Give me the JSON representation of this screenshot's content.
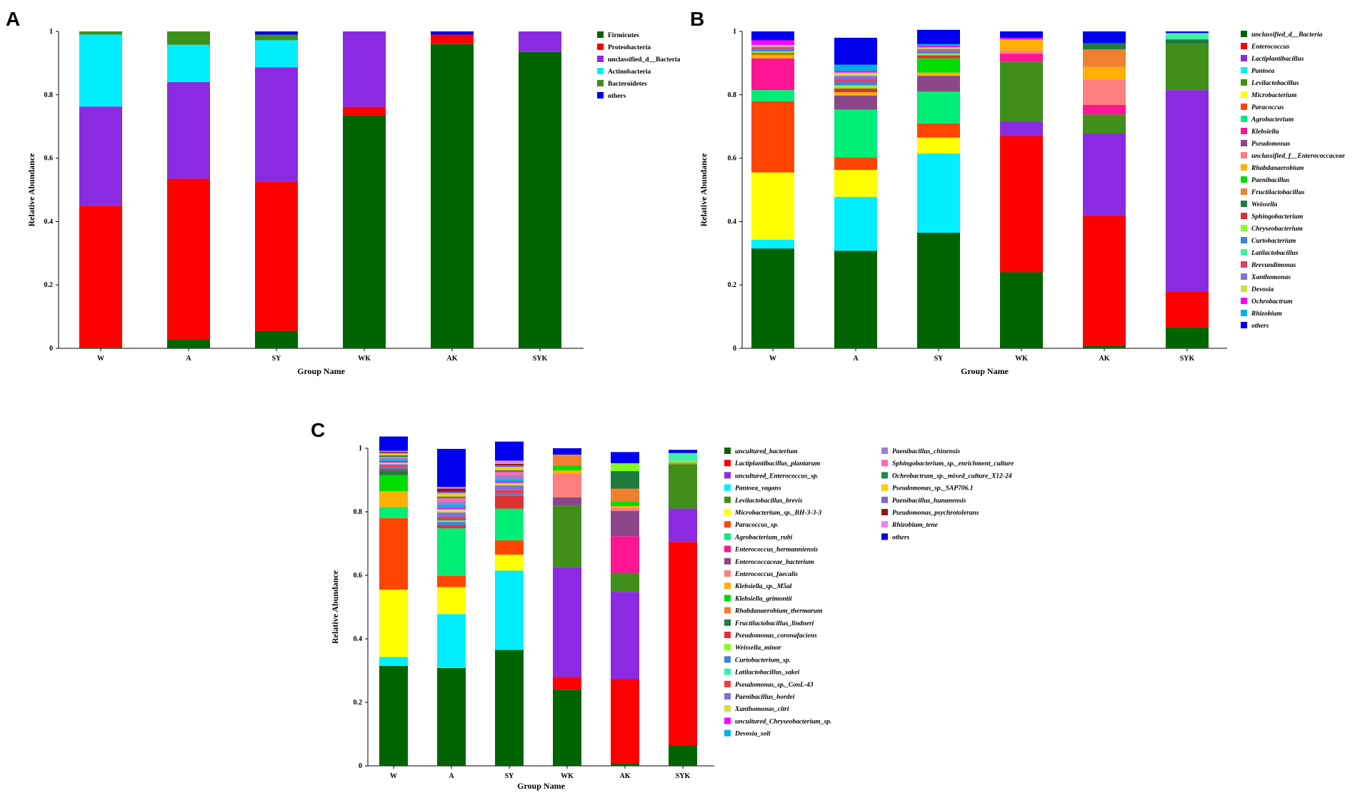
{
  "panels": [
    "A",
    "B",
    "C"
  ],
  "chart_data": [
    {
      "panel": "A",
      "type": "stacked-bar",
      "title": "",
      "xlabel": "Group Name",
      "ylabel": "Relative Abundance",
      "ylim": [
        0,
        1
      ],
      "yticks": [
        "0",
        "0.2",
        "0.4",
        "0.6",
        "0.8",
        "1"
      ],
      "categories": [
        "W",
        "A",
        "SY",
        "WK",
        "AK",
        "SYK"
      ],
      "legend_italic": false,
      "series": [
        {
          "name": "Firmicutes",
          "color": "#006400",
          "values": [
            0.003,
            0.028,
            0.055,
            0.735,
            0.96,
            0.935
          ]
        },
        {
          "name": "Proteobacteria",
          "color": "#ff0000",
          "values": [
            0.447,
            0.507,
            0.47,
            0.027,
            0.03,
            0.0
          ]
        },
        {
          "name": "unclassified_d__Bacteria",
          "color": "#8a2be2",
          "values": [
            0.313,
            0.305,
            0.362,
            0.238,
            0.0,
            0.065
          ]
        },
        {
          "name": "Actinobacteria",
          "color": "#00eeff",
          "values": [
            0.227,
            0.118,
            0.085,
            0.0,
            0.0,
            0.0
          ]
        },
        {
          "name": "Bacteroidetes",
          "color": "#3f8f1a",
          "values": [
            0.01,
            0.042,
            0.018,
            0.0,
            0.0,
            0.0
          ]
        },
        {
          "name": "others",
          "color": "#0000ee",
          "values": [
            0.0,
            0.0,
            0.01,
            0.0,
            0.01,
            0.0
          ]
        }
      ]
    },
    {
      "panel": "B",
      "type": "stacked-bar",
      "title": "",
      "xlabel": "Group Name",
      "ylabel": "Relative Abundance",
      "ylim": [
        0,
        1
      ],
      "yticks": [
        "0",
        "0.2",
        "0.4",
        "0.6",
        "0.8",
        "1"
      ],
      "categories": [
        "W",
        "A",
        "SY",
        "WK",
        "AK",
        "SYK"
      ],
      "legend_italic": true,
      "series": [
        {
          "name": "unclassified_d__Bacteria",
          "color": "#006400",
          "values": [
            0.315,
            0.308,
            0.365,
            0.24,
            0.008,
            0.065
          ]
        },
        {
          "name": "Enterococcus",
          "color": "#ff0000",
          "values": [
            0.0,
            0.0,
            0.0,
            0.43,
            0.41,
            0.115
          ]
        },
        {
          "name": "Lactiplantibacillus",
          "color": "#8a2be2",
          "values": [
            0.0,
            0.0,
            0.0,
            0.045,
            0.26,
            0.635
          ]
        },
        {
          "name": "Pantoea",
          "color": "#00eeff",
          "values": [
            0.028,
            0.17,
            0.25,
            0.0,
            0.0,
            0.0
          ]
        },
        {
          "name": "Levilactobacillus",
          "color": "#3f8f1a",
          "values": [
            0.0,
            0.0,
            0.0,
            0.19,
            0.06,
            0.145
          ]
        },
        {
          "name": "Microbacterium",
          "color": "#ffff00",
          "values": [
            0.212,
            0.085,
            0.05,
            0.0,
            0.0,
            0.0
          ]
        },
        {
          "name": "Paracoccus",
          "color": "#ff4500",
          "values": [
            0.225,
            0.04,
            0.045,
            0.0,
            0.0,
            0.0
          ]
        },
        {
          "name": "Agrobacterium",
          "color": "#00ee76",
          "values": [
            0.035,
            0.15,
            0.1,
            0.0,
            0.0,
            0.0
          ]
        },
        {
          "name": "Klebsiella",
          "color": "#ff1493",
          "values": [
            0.1,
            0.0,
            0.0,
            0.025,
            0.03,
            0.0
          ]
        },
        {
          "name": "Pseudomonas",
          "color": "#8b4789",
          "values": [
            0.0,
            0.045,
            0.05,
            0.0,
            0.0,
            0.0
          ]
        },
        {
          "name": "unclassified_f__Enterococcaceae",
          "color": "#ff7f7f",
          "values": [
            0.0,
            0.0,
            0.0,
            0.01,
            0.08,
            0.0
          ]
        },
        {
          "name": "Rhabdanaerobium",
          "color": "#ffb000",
          "values": [
            0.012,
            0.01,
            0.01,
            0.035,
            0.04,
            0.0
          ]
        },
        {
          "name": "Paenibacillus",
          "color": "#00dd00",
          "values": [
            0.0,
            0.0,
            0.045,
            0.0,
            0.0,
            0.0
          ]
        },
        {
          "name": "Fructilactobacillus",
          "color": "#f08030",
          "values": [
            0.0,
            0.0,
            0.0,
            0.0,
            0.055,
            0.0
          ]
        },
        {
          "name": "Weissella",
          "color": "#1e7b3e",
          "values": [
            0.0,
            0.0,
            0.0,
            0.0,
            0.02,
            0.015
          ]
        },
        {
          "name": "Sphingobacterium",
          "color": "#e03030",
          "values": [
            0.005,
            0.012,
            0.01,
            0.0,
            0.0,
            0.0
          ]
        },
        {
          "name": "Chryseobacterium",
          "color": "#80ff20",
          "values": [
            0.005,
            0.01,
            0.005,
            0.0,
            0.0,
            0.0
          ]
        },
        {
          "name": "Curtobacterium",
          "color": "#4080e0",
          "values": [
            0.005,
            0.01,
            0.005,
            0.0,
            0.0,
            0.0
          ]
        },
        {
          "name": "Latilactobacillus",
          "color": "#40f0a0",
          "values": [
            0.0,
            0.0,
            0.0,
            0.0,
            0.0,
            0.02
          ]
        },
        {
          "name": "Brevundimonas",
          "color": "#e04060",
          "values": [
            0.005,
            0.01,
            0.005,
            0.0,
            0.0,
            0.0
          ]
        },
        {
          "name": "Xanthomonas",
          "color": "#8070e0",
          "values": [
            0.005,
            0.01,
            0.005,
            0.0,
            0.0,
            0.0
          ]
        },
        {
          "name": "Devosia",
          "color": "#d0e040",
          "values": [
            0.005,
            0.01,
            0.005,
            0.0,
            0.0,
            0.0
          ]
        },
        {
          "name": "Ochrobactrum",
          "color": "#ff00ff",
          "values": [
            0.015,
            0.005,
            0.005,
            0.005,
            0.0,
            0.0
          ]
        },
        {
          "name": "Rhizobium",
          "color": "#00b0e0",
          "values": [
            0.0,
            0.02,
            0.005,
            0.0,
            0.0,
            0.0
          ]
        },
        {
          "name": "others",
          "color": "#0000ee",
          "values": [
            0.028,
            0.085,
            0.045,
            0.02,
            0.037,
            0.005
          ]
        }
      ]
    },
    {
      "panel": "C",
      "type": "stacked-bar",
      "title": "",
      "xlabel": "Group Name",
      "ylabel": "Relative Abundance",
      "ylim": [
        0,
        1
      ],
      "yticks": [
        "0",
        "0.2",
        "0.4",
        "0.6",
        "0.8",
        "1"
      ],
      "categories": [
        "W",
        "A",
        "SY",
        "WK",
        "AK",
        "SYK"
      ],
      "legend_italic": true,
      "series": [
        {
          "name": "uncultured_bacterium",
          "color": "#006400",
          "values": [
            0.315,
            0.308,
            0.365,
            0.24,
            0.008,
            0.065
          ]
        },
        {
          "name": "Lactiplantibacillus_plantarum",
          "color": "#ff0000",
          "values": [
            0.0,
            0.0,
            0.0,
            0.04,
            0.265,
            0.64
          ]
        },
        {
          "name": "uncultured_Enterococcus_sp.",
          "color": "#8a2be2",
          "values": [
            0.0,
            0.0,
            0.0,
            0.345,
            0.275,
            0.105
          ]
        },
        {
          "name": "Pantoea_vagans",
          "color": "#00eeff",
          "values": [
            0.028,
            0.17,
            0.25,
            0.0,
            0.0,
            0.0
          ]
        },
        {
          "name": "Levilactobacillus_brevis",
          "color": "#3f8f1a",
          "values": [
            0.0,
            0.0,
            0.0,
            0.195,
            0.06,
            0.14
          ]
        },
        {
          "name": "Microbacterium_sp._BH-3-3-3",
          "color": "#ffff00",
          "values": [
            0.212,
            0.085,
            0.05,
            0.0,
            0.0,
            0.0
          ]
        },
        {
          "name": "Paracoccus_sp.",
          "color": "#ff4500",
          "values": [
            0.225,
            0.035,
            0.045,
            0.0,
            0.0,
            0.0
          ]
        },
        {
          "name": "Agrobacterium_rubi",
          "color": "#00ee76",
          "values": [
            0.035,
            0.15,
            0.1,
            0.0,
            0.0,
            0.0
          ]
        },
        {
          "name": "Enterococcus_hermanniensis",
          "color": "#ff1493",
          "values": [
            0.0,
            0.0,
            0.0,
            0.0,
            0.115,
            0.0
          ]
        },
        {
          "name": "Enterococcaceae_bacterium",
          "color": "#8b4789",
          "values": [
            0.0,
            0.0,
            0.0,
            0.025,
            0.08,
            0.0
          ]
        },
        {
          "name": "Enterococcus_faecalis",
          "color": "#ff7f7f",
          "values": [
            0.0,
            0.0,
            0.0,
            0.075,
            0.01,
            0.0
          ]
        },
        {
          "name": "Klebsiella_sp._M5al",
          "color": "#ffb000",
          "values": [
            0.05,
            0.0,
            0.0,
            0.01,
            0.005,
            0.0
          ]
        },
        {
          "name": "Klebsiella_grimontii",
          "color": "#00dd00",
          "values": [
            0.05,
            0.0,
            0.0,
            0.015,
            0.015,
            0.0
          ]
        },
        {
          "name": "Rhabdanaerobium_thermarum",
          "color": "#f08030",
          "values": [
            0.0,
            0.0,
            0.0,
            0.035,
            0.04,
            0.005
          ]
        },
        {
          "name": "Fructilactobacillus_lindneri",
          "color": "#1e7b3e",
          "values": [
            0.015,
            0.0,
            0.0,
            0.0,
            0.055,
            0.0
          ]
        },
        {
          "name": "Pseudomonas_coronafaciens",
          "color": "#e03030",
          "values": [
            0.005,
            0.01,
            0.04,
            0.0,
            0.0,
            0.0
          ]
        },
        {
          "name": "Weissella_minor",
          "color": "#80ff20",
          "values": [
            0.0,
            0.0,
            0.0,
            0.0,
            0.025,
            0.005
          ]
        },
        {
          "name": "Curtobacterium_sp.",
          "color": "#4080e0",
          "values": [
            0.005,
            0.01,
            0.008,
            0.0,
            0.0,
            0.0
          ]
        },
        {
          "name": "Latilactobacillus_sakei",
          "color": "#40f0a0",
          "values": [
            0.0,
            0.005,
            0.0,
            0.0,
            0.0,
            0.025
          ]
        },
        {
          "name": "Pseudomonas_sp._ConL-43",
          "color": "#ee3b3b",
          "values": [
            0.005,
            0.01,
            0.01,
            0.0,
            0.0,
            0.0
          ]
        },
        {
          "name": "Paenibacillus_hordei",
          "color": "#8070e0",
          "values": [
            0.005,
            0.015,
            0.015,
            0.0,
            0.0,
            0.0
          ]
        },
        {
          "name": "Xanthomonas_citri",
          "color": "#d0e040",
          "values": [
            0.005,
            0.01,
            0.008,
            0.0,
            0.0,
            0.0
          ]
        },
        {
          "name": "uncultured_Chryseobacterium_sp.",
          "color": "#ff00ff",
          "values": [
            0.005,
            0.005,
            0.005,
            0.0,
            0.0,
            0.0
          ]
        },
        {
          "name": "Devosia_soli",
          "color": "#00b0e0",
          "values": [
            0.005,
            0.01,
            0.005,
            0.0,
            0.0,
            0.0
          ]
        },
        {
          "name": "Paenibacillus_chinensis",
          "color": "#9a7fd0",
          "values": [
            0.005,
            0.01,
            0.015,
            0.0,
            0.0,
            0.0
          ]
        },
        {
          "name": "Sphingobacterium_sp._enrichment_culture",
          "color": "#ff69b4",
          "values": [
            0.003,
            0.01,
            0.01,
            0.0,
            0.0,
            0.0
          ]
        },
        {
          "name": "Ochrobactrum_sp._mixed_culture_X12-24",
          "color": "#1a8a50",
          "values": [
            0.005,
            0.005,
            0.005,
            0.0,
            0.0,
            0.0
          ]
        },
        {
          "name": "Pseudomonas_sp._SAP706.1",
          "color": "#ffcc00",
          "values": [
            0.005,
            0.01,
            0.01,
            0.0,
            0.0,
            0.0
          ]
        },
        {
          "name": "Paenibacillus_hunanensis",
          "color": "#7a6ad8",
          "values": [
            0.003,
            0.005,
            0.005,
            0.0,
            0.0,
            0.0
          ]
        },
        {
          "name": "Pseudomonas_psychrotolerans",
          "color": "#8b1a1a",
          "values": [
            0.003,
            0.01,
            0.005,
            0.0,
            0.0,
            0.0
          ]
        },
        {
          "name": "Rhizobium_tene",
          "color": "#ee82ee",
          "values": [
            0.003,
            0.005,
            0.01,
            0.0,
            0.0,
            0.0
          ]
        },
        {
          "name": "others",
          "color": "#0000ee",
          "values": [
            0.045,
            0.12,
            0.06,
            0.02,
            0.035,
            0.01
          ]
        }
      ]
    }
  ]
}
